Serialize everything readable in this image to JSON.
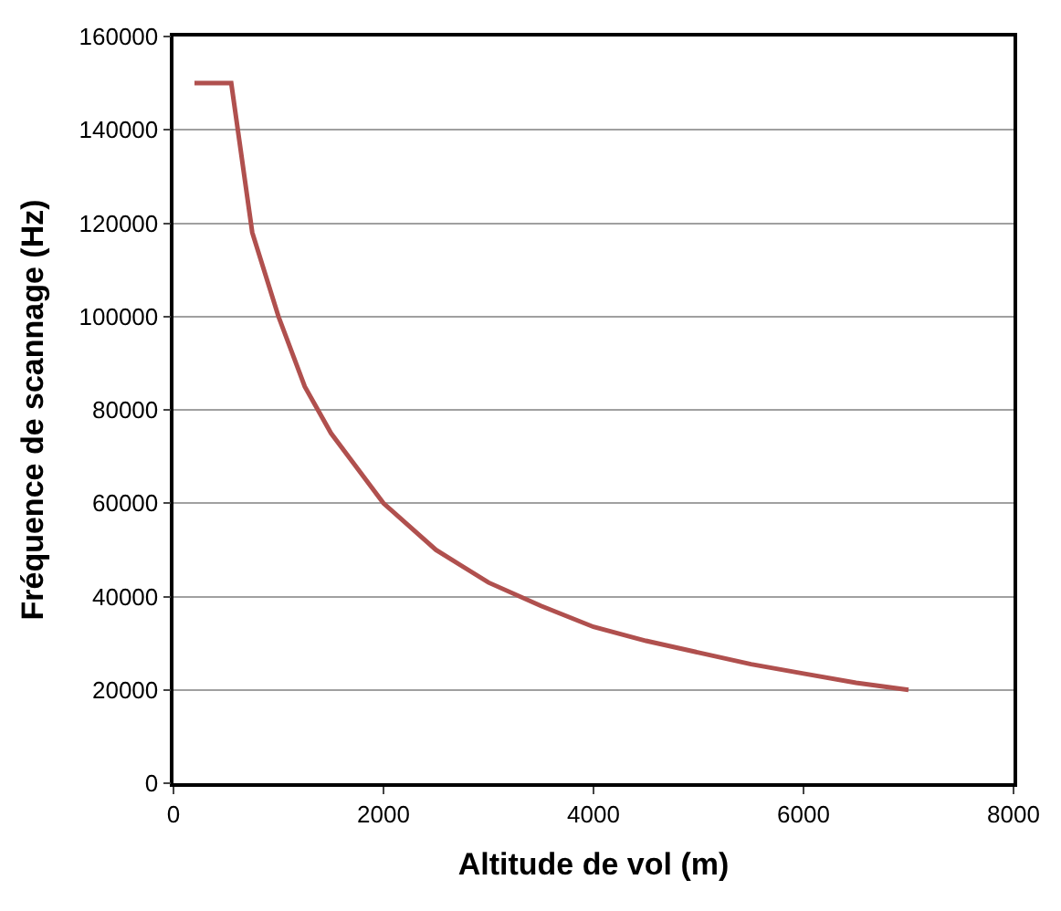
{
  "chart_data": {
    "type": "line",
    "xlabel": "Altitude de vol (m)",
    "ylabel": "Fréquence de scannage (Hz)",
    "x": [
      200,
      550,
      750,
      1000,
      1250,
      1500,
      2000,
      2500,
      3000,
      3500,
      4000,
      4500,
      5000,
      5500,
      6000,
      6500,
      7000
    ],
    "series": [
      {
        "color": "#b0504e",
        "values": [
          150000,
          150000,
          118000,
          100000,
          85000,
          75000,
          60000,
          50000,
          43000,
          38000,
          33500,
          30500,
          28000,
          25500,
          23500,
          21500,
          20000
        ]
      }
    ],
    "xlim": [
      0,
      8000
    ],
    "xticks": [
      0,
      2000,
      4000,
      6000,
      8000
    ],
    "ylim": [
      0,
      160000
    ],
    "yticks": [
      0,
      20000,
      40000,
      60000,
      80000,
      100000,
      120000,
      140000,
      160000
    ],
    "grid": "y",
    "legend": false,
    "marker": "none",
    "line_style": "solid"
  }
}
